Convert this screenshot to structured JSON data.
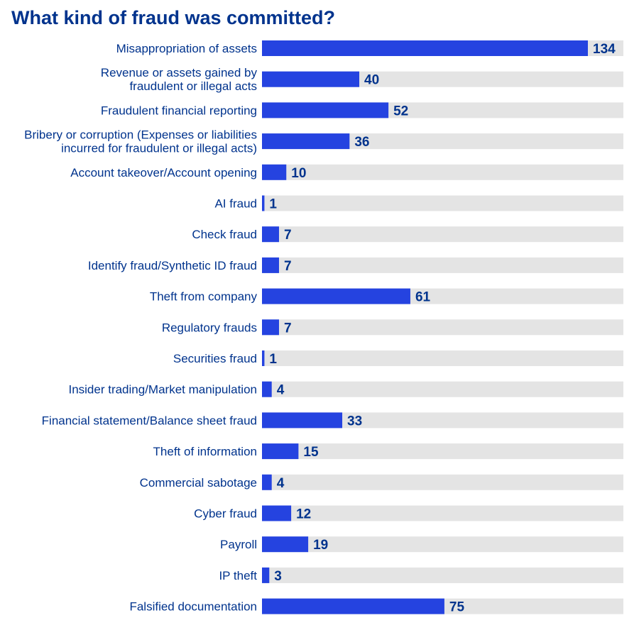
{
  "chart_data": {
    "type": "bar",
    "orientation": "horizontal",
    "title": "What kind of fraud was committed?",
    "xlabel": "",
    "ylabel": "",
    "xlim": [
      0,
      134
    ],
    "grid": false,
    "legend": "none",
    "categories": [
      [
        "Misappropriation of assets"
      ],
      [
        "Revenue or assets gained by",
        "fraudulent or illegal acts"
      ],
      [
        "Fraudulent financial reporting"
      ],
      [
        "Bribery or corruption (Expenses or liabilities",
        "incurred for fraudulent or illegal acts)"
      ],
      [
        "Account takeover/Account opening"
      ],
      [
        "AI fraud"
      ],
      [
        "Check fraud"
      ],
      [
        "Identify fraud/Synthetic ID fraud"
      ],
      [
        "Theft from company"
      ],
      [
        "Regulatory frauds"
      ],
      [
        "Securities fraud"
      ],
      [
        "Insider trading/Market manipulation"
      ],
      [
        "Financial statement/Balance sheet fraud"
      ],
      [
        "Theft of information"
      ],
      [
        "Commercial sabotage"
      ],
      [
        "Cyber fraud"
      ],
      [
        "Payroll"
      ],
      [
        "IP theft"
      ],
      [
        "Falsified documentation"
      ]
    ],
    "values": [
      134,
      40,
      52,
      36,
      10,
      1,
      7,
      7,
      61,
      7,
      1,
      4,
      33,
      15,
      4,
      12,
      19,
      3,
      75
    ]
  },
  "colors": {
    "bar": "#2543e0",
    "track": "#e4e4e4",
    "text": "#00338d"
  }
}
